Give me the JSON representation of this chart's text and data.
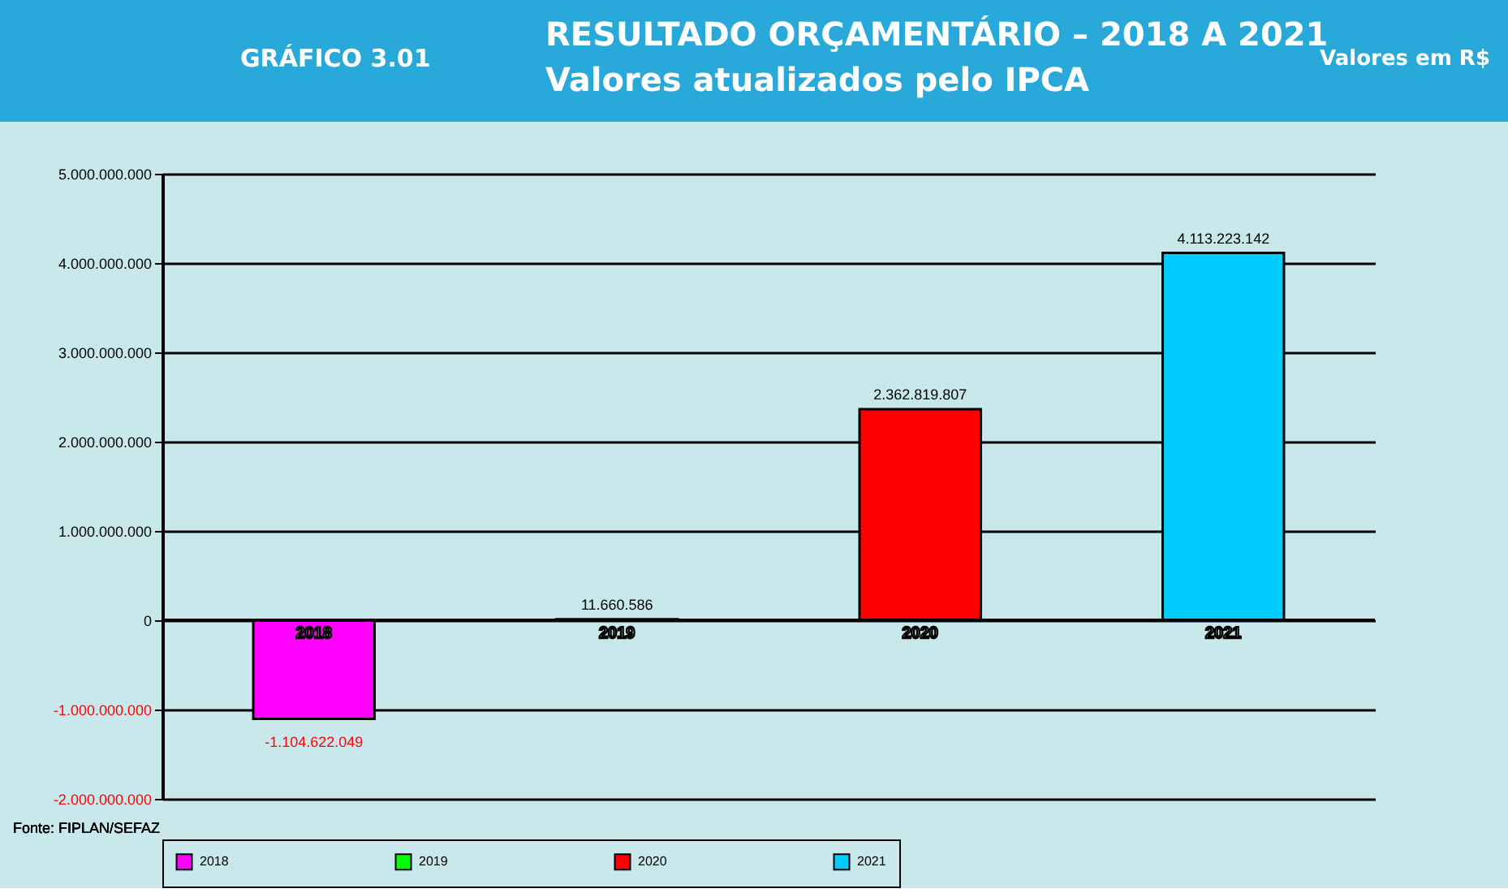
{
  "chart_data": {
    "type": "bar",
    "title": "RESULTADO ORÇAMENTÁRIO – 2018 A 2021",
    "subtitle": "Valores atualizados pelo IPCA",
    "categories": [
      "2018",
      "2019",
      "2020",
      "2021"
    ],
    "series": [
      {
        "name": "2018",
        "color": "#ff00ff",
        "values": [
          -1104622049,
          null,
          null,
          null
        ],
        "value_labels": [
          "-1.104.622.049",
          null,
          null,
          null
        ]
      },
      {
        "name": "2019",
        "color": "#00ff00",
        "values": [
          null,
          11660586,
          null,
          null
        ],
        "value_labels": [
          null,
          "11.660.586",
          null,
          null
        ]
      },
      {
        "name": "2020",
        "color": "#ff0000",
        "values": [
          null,
          null,
          2362819807,
          null
        ],
        "value_labels": [
          null,
          null,
          "2.362.819.807",
          null
        ]
      },
      {
        "name": "2021",
        "color": "#00ccff",
        "values": [
          null,
          null,
          null,
          4113223142
        ],
        "value_labels": [
          null,
          null,
          null,
          "4.113.223.142"
        ]
      }
    ],
    "ylim": [
      -2000000000,
      5000000000
    ],
    "yticks": [
      {
        "value": -2000000000,
        "label": "-2.000.000.000"
      },
      {
        "value": -1000000000,
        "label": "-1.000.000.000"
      },
      0,
      {
        "value": 1000000000,
        "label": "1.000.000.000"
      },
      {
        "value": 2000000000,
        "label": "2.000.000.000"
      },
      {
        "value": 3000000000,
        "label": "3.000.000.000"
      },
      {
        "value": 4000000000,
        "label": "4.000.000.000"
      },
      {
        "value": 5000000000,
        "label": "5.000.000.000"
      }
    ],
    "grid": "y",
    "legend": "bottom",
    "annotations": [
      "GRÁFICO 3.01",
      "Valores em R$",
      "Fonte: FIPLAN/SEFAZ"
    ]
  }
}
